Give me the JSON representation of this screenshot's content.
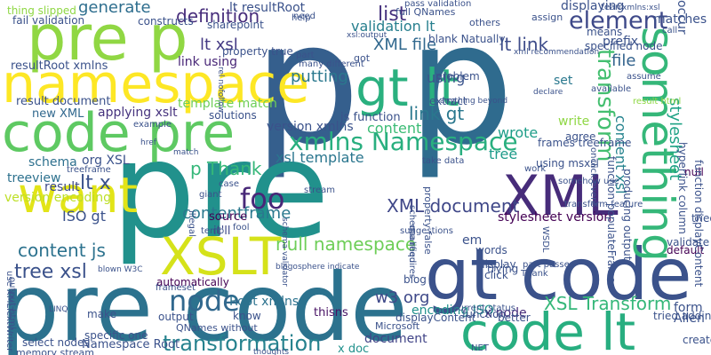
{
  "words": [
    {
      "text": "p",
      "color": "#355f8d"
    },
    {
      "text": "p",
      "color": "#2f6b8e"
    },
    {
      "text": "pre",
      "color": "#21918c"
    },
    {
      "text": "pre code",
      "color": "#2c728e"
    },
    {
      "text": "gt code",
      "color": "#3b528b"
    },
    {
      "text": "code lt",
      "color": "#28ae80"
    },
    {
      "text": "code pre",
      "color": "#5ec962"
    },
    {
      "text": "pre p",
      "color": "#90d743"
    },
    {
      "text": "namespace",
      "color": "#fde725"
    },
    {
      "text": "gt lt",
      "color": "#2ab07f"
    },
    {
      "text": "XML",
      "color": "#472c7a"
    },
    {
      "text": "want",
      "color": "#e2e418"
    },
    {
      "text": "XSLT",
      "color": "#d5e21a"
    },
    {
      "text": "something",
      "color": "#35b779"
    },
    {
      "text": "node",
      "color": "#31688e"
    },
    {
      "text": "foo",
      "color": "#482878"
    },
    {
      "text": "xmlns Namespace",
      "color": "#29af7f"
    },
    {
      "text": "element",
      "color": "#3e4989"
    },
    {
      "text": "transform",
      "color": "#44bf70"
    },
    {
      "text": "transformation",
      "color": "#26828e"
    },
    {
      "text": "XSL Transform",
      "color": "#35b779"
    },
    {
      "text": "contentframe",
      "color": "#2a788e"
    },
    {
      "text": "XML document",
      "color": "#3f4788"
    },
    {
      "text": "null namespace",
      "color": "#6ece58"
    },
    {
      "text": "tree xsl",
      "color": "#3b528b"
    },
    {
      "text": "content js",
      "color": "#2c728e"
    },
    {
      "text": "p Thank",
      "color": "#35b779"
    },
    {
      "text": "lt x",
      "color": "#3b528b"
    },
    {
      "text": "lt xsl",
      "color": "#443983"
    },
    {
      "text": "definition",
      "color": "#472d7b"
    },
    {
      "text": "lt link",
      "color": "#3e4c8a"
    },
    {
      "text": "link gt",
      "color": "#2a788e"
    },
    {
      "text": "list",
      "color": "#46327e"
    },
    {
      "text": "generate",
      "color": "#2e6e8e"
    },
    {
      "text": "stylesheet",
      "color": "#20a386"
    },
    {
      "text": "content xsl",
      "color": "#25838e"
    },
    {
      "text": "validation lt",
      "color": "#277f8e"
    },
    {
      "text": "XML file",
      "color": "#31688e"
    },
    {
      "text": "template match",
      "color": "#6ece58"
    },
    {
      "text": "xsl template",
      "color": "#2a768e"
    },
    {
      "text": "version xmlns",
      "color": "#3b528b"
    },
    {
      "text": "content",
      "color": "#3bbb75"
    },
    {
      "text": "wrote",
      "color": "#1f9e89"
    },
    {
      "text": "tree",
      "color": "#1e9b8a"
    },
    {
      "text": "using",
      "color": "#3a548c"
    },
    {
      "text": "file",
      "color": "#33638d"
    },
    {
      "text": "org XSL",
      "color": "#3b528b"
    },
    {
      "text": "schema",
      "color": "#2d708e"
    },
    {
      "text": "treeview",
      "color": "#2d718e"
    },
    {
      "text": "result",
      "color": "#3e4989"
    },
    {
      "text": "version encoding",
      "color": "#bddf26"
    },
    {
      "text": "ISO gt",
      "color": "#3b528b"
    },
    {
      "text": "Root xmlns",
      "color": "#2c728e"
    },
    {
      "text": "w3 org",
      "color": "#3e4989"
    },
    {
      "text": "thisns",
      "color": "#471164"
    },
    {
      "text": "encoding ISO",
      "color": "#21918c"
    },
    {
      "text": "x node",
      "color": "#472c7a"
    },
    {
      "text": "document",
      "color": "#414487"
    },
    {
      "text": "x doc",
      "color": "#21918c"
    },
    {
      "text": "specific one",
      "color": "#3b528b"
    },
    {
      "text": "Namespace Root",
      "color": "#3b528b"
    },
    {
      "text": "automatically",
      "color": "#440154"
    },
    {
      "text": "result document",
      "color": "#3b528b"
    },
    {
      "text": "new XML",
      "color": "#31688e"
    },
    {
      "text": "applying xslt",
      "color": "#46337e"
    },
    {
      "text": "resultRoot xmlns",
      "color": "#3b528b"
    },
    {
      "text": "lt resultRoot",
      "color": "#3b528b"
    },
    {
      "text": "sharepoint",
      "color": "#3b528b"
    },
    {
      "text": "link using",
      "color": "#482677"
    },
    {
      "text": "constructs",
      "color": "#3b528b"
    },
    {
      "text": "fail validation",
      "color": "#3b528b"
    },
    {
      "text": "thing slipped",
      "color": "#8fd744"
    },
    {
      "text": "putting",
      "color": "#2a788e"
    },
    {
      "text": "js function",
      "color": "#3b528b"
    },
    {
      "text": "frames treeframe",
      "color": "#3b528b"
    },
    {
      "text": "using msxsl",
      "color": "#3b528b"
    },
    {
      "text": "stylesheet version",
      "color": "#440154"
    },
    {
      "text": "source",
      "color": "#440154"
    },
    {
      "text": "it'll",
      "color": "#3e4989"
    },
    {
      "text": "em",
      "color": "#3b528b"
    },
    {
      "text": "words",
      "color": "#3b528b"
    },
    {
      "text": "display",
      "color": "#3b528b"
    },
    {
      "text": "click",
      "color": "#3b528b"
    },
    {
      "text": "trying",
      "color": "#3b528b"
    },
    {
      "text": "blog",
      "color": "#3b528b"
    },
    {
      "text": "null",
      "color": "#440154"
    },
    {
      "text": "prefix",
      "color": "#3b528b"
    },
    {
      "text": "matches",
      "color": "#3b528b"
    },
    {
      "text": "displaying",
      "color": "#3b528b"
    },
    {
      "text": "occur",
      "color": "#3b528b"
    },
    {
      "text": "write",
      "color": "#8fd744"
    },
    {
      "text": "set",
      "color": "#2a788e"
    },
    {
      "text": "form",
      "color": "#3b528b"
    },
    {
      "text": "Allen",
      "color": "#3b528b"
    },
    {
      "text": "tried adding",
      "color": "#3b528b"
    },
    {
      "text": "create",
      "color": "#3b528b"
    },
    {
      "text": "validate",
      "color": "#3b528b"
    },
    {
      "text": "default",
      "color": "#440154"
    },
    {
      "text": "tried",
      "color": "#3b528b"
    },
    {
      "text": "Microsoft",
      "color": "#3b528b"
    },
    {
      "text": "function",
      "color": "#3b528b"
    },
    {
      "text": "better",
      "color": "#3b528b"
    },
    {
      "text": "displayContent",
      "color": "#3b528b"
    },
    {
      "text": "QNames without",
      "color": "#3b528b"
    },
    {
      "text": "output",
      "color": "#3b528b"
    },
    {
      "text": "know",
      "color": "#3b528b"
    },
    {
      "text": "make",
      "color": "#3b528b"
    },
    {
      "text": "select nodes",
      "color": "#3b528b"
    },
    {
      "text": "memory stream",
      "color": "#3b528b"
    },
    {
      "text": "use XMLTextWriter",
      "color": "#3b528b"
    },
    {
      "text": "output html",
      "color": "#3b528b"
    },
    {
      "text": "example",
      "color": "#3b528b"
    },
    {
      "text": "solutions",
      "color": "#3b528b"
    },
    {
      "text": "hyperlink column",
      "color": "#3b528b"
    },
    {
      "text": "function displayContent",
      "color": "#3b528b"
    },
    {
      "text": "producing output",
      "color": "#3b528b"
    },
    {
      "text": "function populateFrames",
      "color": "#3b528b"
    },
    {
      "text": "onclick event",
      "color": "#3b528b"
    },
    {
      "text": "specified node",
      "color": "#3b528b"
    },
    {
      "text": "means",
      "color": "#3b528b"
    },
    {
      "text": "agree",
      "color": "#3b528b"
    },
    {
      "text": "extract",
      "color": "#3b528b"
    },
    {
      "text": "problem",
      "color": "#3b528b"
    },
    {
      "text": "blank Natually",
      "color": "#3b528b"
    },
    {
      "text": "property true",
      "color": "#3b528b"
    },
    {
      "text": "full QNames",
      "color": "#3b528b"
    },
    {
      "text": "pass validation",
      "color": "#3b528b"
    },
    {
      "text": "help",
      "color": "#3b528b"
    },
    {
      "text": "need",
      "color": "#3b528b"
    },
    {
      "text": "others",
      "color": "#3b528b"
    },
    {
      "text": "assign",
      "color": "#3b528b"
    },
    {
      "text": "team",
      "color": "#3b528b"
    },
    {
      "text": "assume",
      "color": "#3b528b"
    },
    {
      "text": "call",
      "color": "#3b528b"
    },
    {
      "text": "result html",
      "color": "#8fd744"
    },
    {
      "text": "got",
      "color": "#3b528b"
    },
    {
      "text": "part",
      "color": "#3b528b"
    },
    {
      "text": "many different",
      "color": "#3b528b"
    },
    {
      "text": "take data",
      "color": "#3b528b"
    },
    {
      "text": "property false",
      "color": "#3b528b"
    },
    {
      "text": "treeframe",
      "color": "#3b528b"
    },
    {
      "text": "case",
      "color": "#3b528b"
    },
    {
      "text": "giant",
      "color": "#3b528b"
    },
    {
      "text": "stream",
      "color": "#3b528b"
    },
    {
      "text": "somehow use",
      "color": "#3b528b"
    },
    {
      "text": "transform feature",
      "color": "#3b528b"
    },
    {
      "text": "work",
      "color": "#3b528b"
    },
    {
      "text": "fool",
      "color": "#3b528b"
    },
    {
      "text": "temp",
      "color": "#3b528b"
    },
    {
      "text": "suggestions",
      "color": "#3b528b"
    },
    {
      "text": "qualified",
      "color": "#3b528b"
    },
    {
      "text": "schema requires",
      "color": "#3b528b"
    },
    {
      "text": "part passes",
      "color": "#3b528b"
    },
    {
      "text": "Thank",
      "color": "#3b528b"
    },
    {
      "text": "frameset",
      "color": "#3b528b"
    },
    {
      "text": "WSDL",
      "color": "#3b528b"
    },
    {
      "text": "NET",
      "color": "#3b528b"
    },
    {
      "text": "current status",
      "color": "#3b528b"
    },
    {
      "text": "thoughts",
      "color": "#3b528b"
    },
    {
      "text": "illegal",
      "color": "#3b528b"
    },
    {
      "text": "match",
      "color": "#3b528b"
    },
    {
      "text": "href",
      "color": "#3b528b"
    },
    {
      "text": "available",
      "color": "#3b528b"
    },
    {
      "text": "declare",
      "color": "#3b528b"
    },
    {
      "text": "xml recommendation",
      "color": "#3b528b"
    },
    {
      "text": "anything beyond",
      "color": "#3b528b"
    },
    {
      "text": "xsl:output",
      "color": "#3b528b"
    },
    {
      "text": "blown W3C",
      "color": "#3b528b"
    },
    {
      "text": "LINQ",
      "color": "#3b528b"
    },
    {
      "text": "schema validator",
      "color": "#3b528b"
    },
    {
      "text": "blogosphere indicate",
      "color": "#3b528b"
    },
    {
      "text": "xmlns:xsl",
      "color": "#3b528b"
    },
    {
      "text": "rel nofollow",
      "color": "#3b528b"
    },
    {
      "text": "pushing XQuery",
      "color": "#3b528b"
    },
    {
      "text": "Loading",
      "color": "#3b528b"
    }
  ]
}
